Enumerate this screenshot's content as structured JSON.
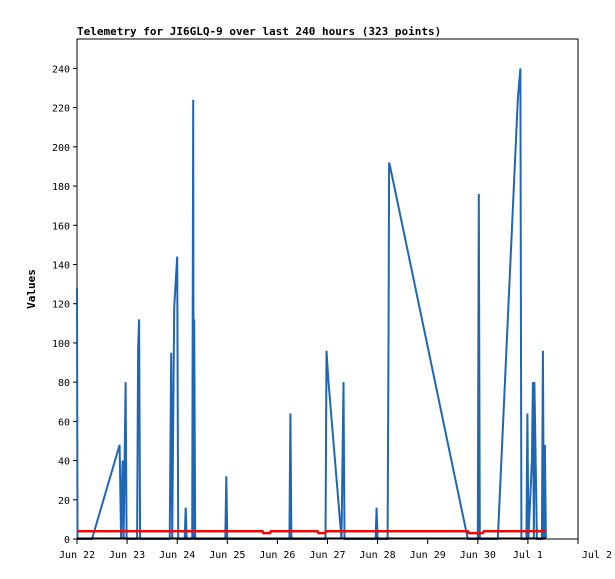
{
  "chart_data": {
    "type": "line",
    "title": "Telemetry for JI6GLQ-9 over last 240 hours (323 points)",
    "ylabel": "Values",
    "xlabel": "",
    "ylim": [
      0,
      255
    ],
    "yticks": [
      0,
      20,
      40,
      60,
      80,
      100,
      120,
      140,
      160,
      180,
      200,
      220,
      240
    ],
    "xlim": [
      "Jun 22",
      "Jul 2"
    ],
    "xticks": [
      "Jun 22",
      "Jun 23",
      "Jun 24",
      "Jun 25",
      "Jun 26",
      "Jun 27",
      "Jun 28",
      "Jun 29",
      "Jun 30",
      "Jul 1",
      "Jul 2"
    ],
    "grid": false,
    "series": [
      {
        "color": "#1f66b4",
        "points": [
          [
            0.0,
            128
          ],
          [
            0.01,
            0
          ],
          [
            0.3,
            0
          ],
          [
            0.85,
            48
          ],
          [
            0.88,
            0
          ],
          [
            0.91,
            40
          ],
          [
            0.93,
            0
          ],
          [
            0.97,
            80
          ],
          [
            0.99,
            0
          ],
          [
            1.2,
            0
          ],
          [
            1.22,
            97
          ],
          [
            1.24,
            112
          ],
          [
            1.26,
            0
          ],
          [
            1.85,
            0
          ],
          [
            1.88,
            95
          ],
          [
            1.9,
            0
          ],
          [
            1.94,
            118
          ],
          [
            2.0,
            144
          ],
          [
            2.02,
            0
          ],
          [
            2.15,
            0
          ],
          [
            2.17,
            16
          ],
          [
            2.19,
            0
          ],
          [
            2.3,
            0
          ],
          [
            2.32,
            224
          ],
          [
            2.33,
            0
          ],
          [
            2.34,
            112
          ],
          [
            2.36,
            0
          ],
          [
            2.96,
            0
          ],
          [
            2.98,
            32
          ],
          [
            3.0,
            0
          ],
          [
            4.24,
            0
          ],
          [
            4.26,
            64
          ],
          [
            4.28,
            0
          ],
          [
            4.96,
            0
          ],
          [
            4.98,
            96
          ],
          [
            5.02,
            80
          ],
          [
            5.28,
            0
          ],
          [
            5.32,
            80
          ],
          [
            5.34,
            0
          ],
          [
            5.96,
            0
          ],
          [
            5.98,
            16
          ],
          [
            6.0,
            0
          ],
          [
            6.2,
            0
          ],
          [
            6.22,
            112
          ],
          [
            6.23,
            192
          ],
          [
            6.25,
            190
          ],
          [
            7.8,
            0
          ],
          [
            8.0,
            0
          ],
          [
            8.02,
            176
          ],
          [
            8.04,
            0
          ],
          [
            8.4,
            0
          ],
          [
            8.8,
            225
          ],
          [
            8.85,
            240
          ],
          [
            8.87,
            0
          ],
          [
            8.97,
            0
          ],
          [
            8.99,
            64
          ],
          [
            9.01,
            0
          ],
          [
            9.08,
            40
          ],
          [
            9.1,
            80
          ],
          [
            9.12,
            0
          ],
          [
            9.13,
            80
          ],
          [
            9.15,
            48
          ],
          [
            9.18,
            0
          ],
          [
            9.28,
            0
          ],
          [
            9.3,
            96
          ],
          [
            9.32,
            0
          ],
          [
            9.34,
            48
          ],
          [
            9.36,
            0
          ]
        ]
      },
      {
        "color": "#ff0000",
        "points": [
          [
            0.0,
            4
          ],
          [
            3.7,
            4
          ],
          [
            3.72,
            3
          ],
          [
            3.85,
            3
          ],
          [
            3.87,
            4
          ],
          [
            4.8,
            4
          ],
          [
            4.82,
            3
          ],
          [
            4.95,
            3
          ],
          [
            4.97,
            4
          ],
          [
            7.8,
            4
          ],
          [
            7.82,
            3
          ],
          [
            8.1,
            3
          ],
          [
            8.12,
            4
          ],
          [
            9.36,
            4
          ]
        ]
      }
    ],
    "baseline": {
      "color": "#000000",
      "value": 0,
      "x_end": 9.36
    }
  }
}
